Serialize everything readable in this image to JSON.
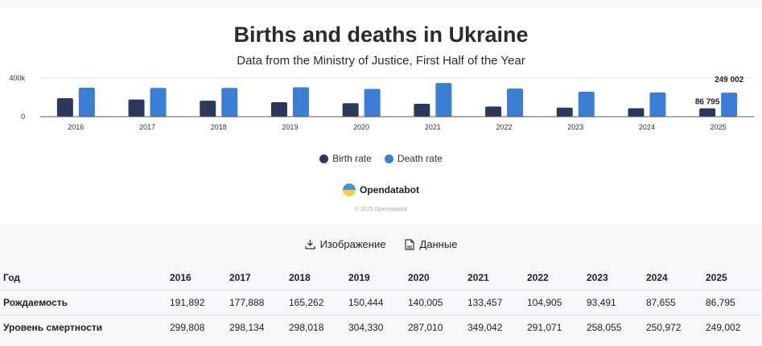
{
  "header": {
    "title": "Births and deaths in Ukraine",
    "subtitle": "Data from the Ministry of Justice, First Half of the Year"
  },
  "colors": {
    "birth": "#2b3a5c",
    "death": "#3a7fd5"
  },
  "chart_data": {
    "type": "bar",
    "categories": [
      "2016",
      "2017",
      "2018",
      "2019",
      "2020",
      "2021",
      "2022",
      "2023",
      "2024",
      "2025"
    ],
    "series": [
      {
        "name": "Birth rate",
        "values": [
          191892,
          177888,
          165262,
          150444,
          140005,
          133457,
          104905,
          93491,
          87655,
          86795
        ]
      },
      {
        "name": "Death rate",
        "values": [
          299808,
          298134,
          298018,
          304330,
          287010,
          349042,
          291071,
          258055,
          250972,
          249002
        ]
      }
    ],
    "y_ticks": [
      "0",
      "400k"
    ],
    "ylim": [
      0,
      400000
    ],
    "data_labels": [
      "86 795",
      "249 002"
    ],
    "legend_position": "bottom"
  },
  "legend": {
    "birth": "Birth rate",
    "death": "Death rate"
  },
  "brand": {
    "name": "Opendatabot",
    "copyright": "© 2025 Opendatabot"
  },
  "actions": {
    "image": "Изображение",
    "data": "Данные"
  },
  "table": {
    "header": [
      "Год",
      "2016",
      "2017",
      "2018",
      "2019",
      "2020",
      "2021",
      "2022",
      "2023",
      "2024",
      "2025"
    ],
    "rows": [
      [
        "Рождаемость",
        "191,892",
        "177,888",
        "165,262",
        "150,444",
        "140,005",
        "133,457",
        "104,905",
        "93,491",
        "87,655",
        "86,795"
      ],
      [
        "Уровень смертности",
        "299,808",
        "298,134",
        "298,018",
        "304,330",
        "287,010",
        "349,042",
        "291,071",
        "258,055",
        "250,972",
        "249,002"
      ]
    ]
  }
}
